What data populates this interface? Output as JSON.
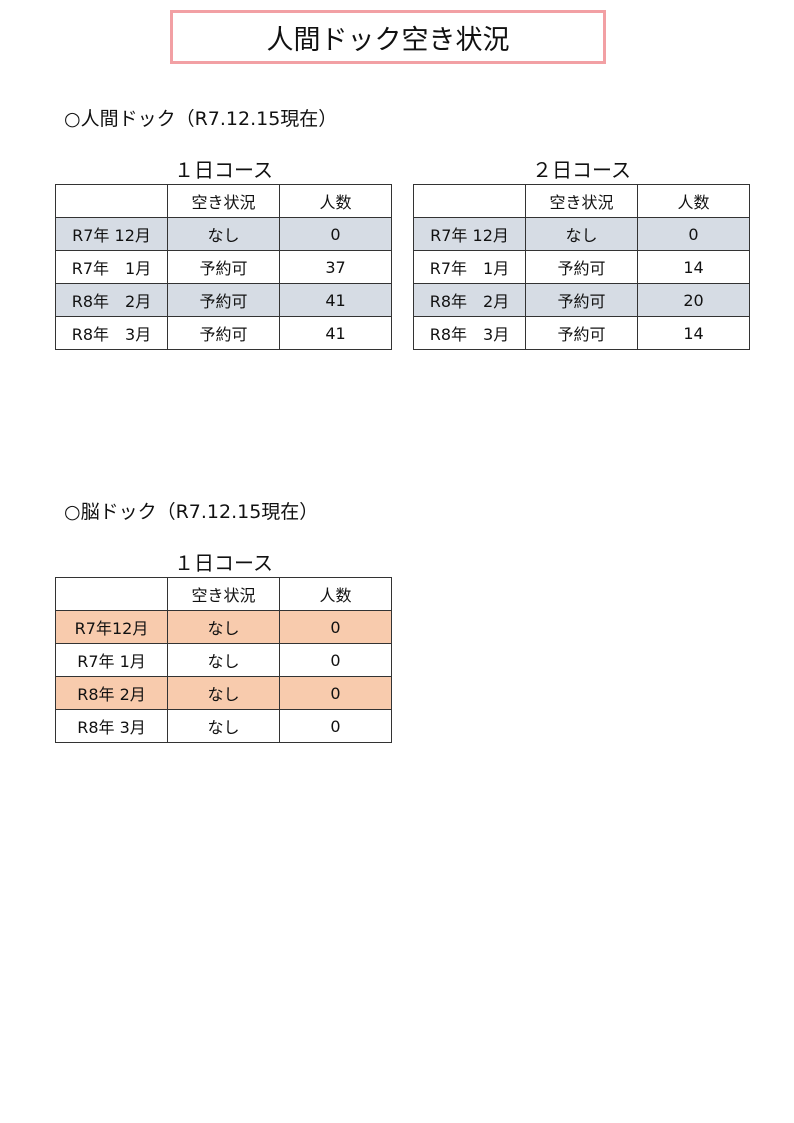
{
  "title": "人間ドック空き状況",
  "sections": [
    {
      "heading": "○人間ドック（R7.12.15現在）",
      "tables": [
        {
          "course": "１日コース",
          "headers": [
            "",
            "空き状況",
            "人数"
          ],
          "highlight": "#d6dce4",
          "rows": [
            [
              "R7年 12月",
              "なし",
              "0"
            ],
            [
              "R7年　1月",
              "予約可",
              "37"
            ],
            [
              "R8年　2月",
              "予約可",
              "41"
            ],
            [
              "R8年　3月",
              "予約可",
              "41"
            ]
          ]
        },
        {
          "course": "２日コース",
          "headers": [
            "",
            "空き状況",
            "人数"
          ],
          "highlight": "#d6dce4",
          "rows": [
            [
              "R7年 12月",
              "なし",
              "0"
            ],
            [
              "R7年　1月",
              "予約可",
              "14"
            ],
            [
              "R8年　2月",
              "予約可",
              "20"
            ],
            [
              "R8年　3月",
              "予約可",
              "14"
            ]
          ]
        }
      ]
    },
    {
      "heading": "○脳ドック（R7.12.15現在）",
      "tables": [
        {
          "course": "１日コース",
          "headers": [
            "",
            "空き状況",
            "人数"
          ],
          "highlight": "#f8cbad",
          "rows": [
            [
              "R7年12月",
              "なし",
              "0"
            ],
            [
              "R7年 1月",
              "なし",
              "0"
            ],
            [
              "R8年 2月",
              "なし",
              "0"
            ],
            [
              "R8年 3月",
              "なし",
              "0"
            ]
          ]
        }
      ]
    }
  ]
}
